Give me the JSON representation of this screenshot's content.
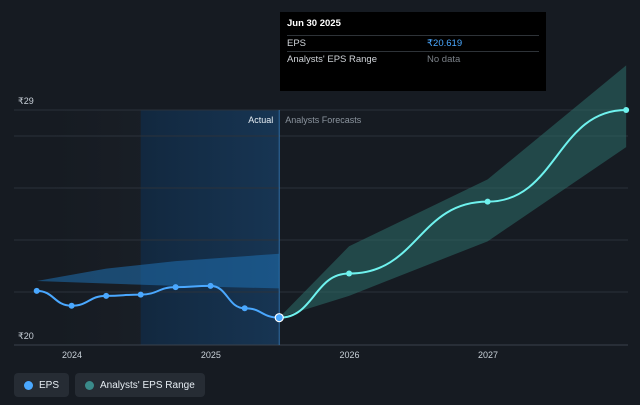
{
  "tooltip": {
    "title": "Jun 30 2025",
    "rows": [
      {
        "label": "EPS",
        "value": "₹20.619"
      },
      {
        "label": "Analysts' EPS Range",
        "value": "No data"
      }
    ]
  },
  "labels": {
    "actual": "Actual",
    "forecast": "Analysts Forecasts"
  },
  "legend": {
    "eps": "EPS",
    "range": "Analysts' EPS Range"
  },
  "colors": {
    "eps_line": "#4aa8ff",
    "forecast_line": "#6ff2ee",
    "forecast_band": "#2d6e6a",
    "actual_band": "#1f6fb0",
    "highlight": "#12324f"
  },
  "chart_data": {
    "type": "line",
    "ylim": [
      20,
      29
    ],
    "yticks": [
      {
        "value": 29,
        "label": "₹29"
      },
      {
        "value": 20,
        "label": "₹20"
      }
    ],
    "xticks": [
      "2024",
      "2025",
      "2026",
      "2027"
    ],
    "divider_date": "2025-06-30",
    "series": [
      {
        "name": "EPS",
        "points": [
          {
            "x": "2023-09-30",
            "y": 21.7
          },
          {
            "x": "2023-12-31",
            "y": 21.1
          },
          {
            "x": "2024-03-31",
            "y": 21.5
          },
          {
            "x": "2024-06-30",
            "y": 21.55
          },
          {
            "x": "2024-09-30",
            "y": 21.85
          },
          {
            "x": "2024-12-31",
            "y": 21.9
          },
          {
            "x": "2025-03-31",
            "y": 21.0
          },
          {
            "x": "2025-06-30",
            "y": 20.619
          }
        ]
      },
      {
        "name": "EPS forecast",
        "points": [
          {
            "x": "2025-06-30",
            "y": 20.619
          },
          {
            "x": "2025-12-31",
            "y": 22.4
          },
          {
            "x": "2026-12-31",
            "y": 25.3
          },
          {
            "x": "2027-12-31",
            "y": 29.0
          }
        ]
      }
    ],
    "actual_band": {
      "x": [
        "2023-09-30",
        "2024-03-31",
        "2024-09-30",
        "2025-06-30"
      ],
      "upper": [
        22.1,
        22.6,
        22.9,
        23.2
      ],
      "lower": [
        22.1,
        22.0,
        21.9,
        21.8
      ]
    },
    "forecast_band": {
      "x": [
        "2025-06-30",
        "2025-12-31",
        "2026-12-31",
        "2027-12-31"
      ],
      "upper": [
        20.619,
        23.5,
        26.2,
        30.8
      ],
      "lower": [
        20.619,
        21.5,
        23.7,
        27.5
      ]
    }
  }
}
